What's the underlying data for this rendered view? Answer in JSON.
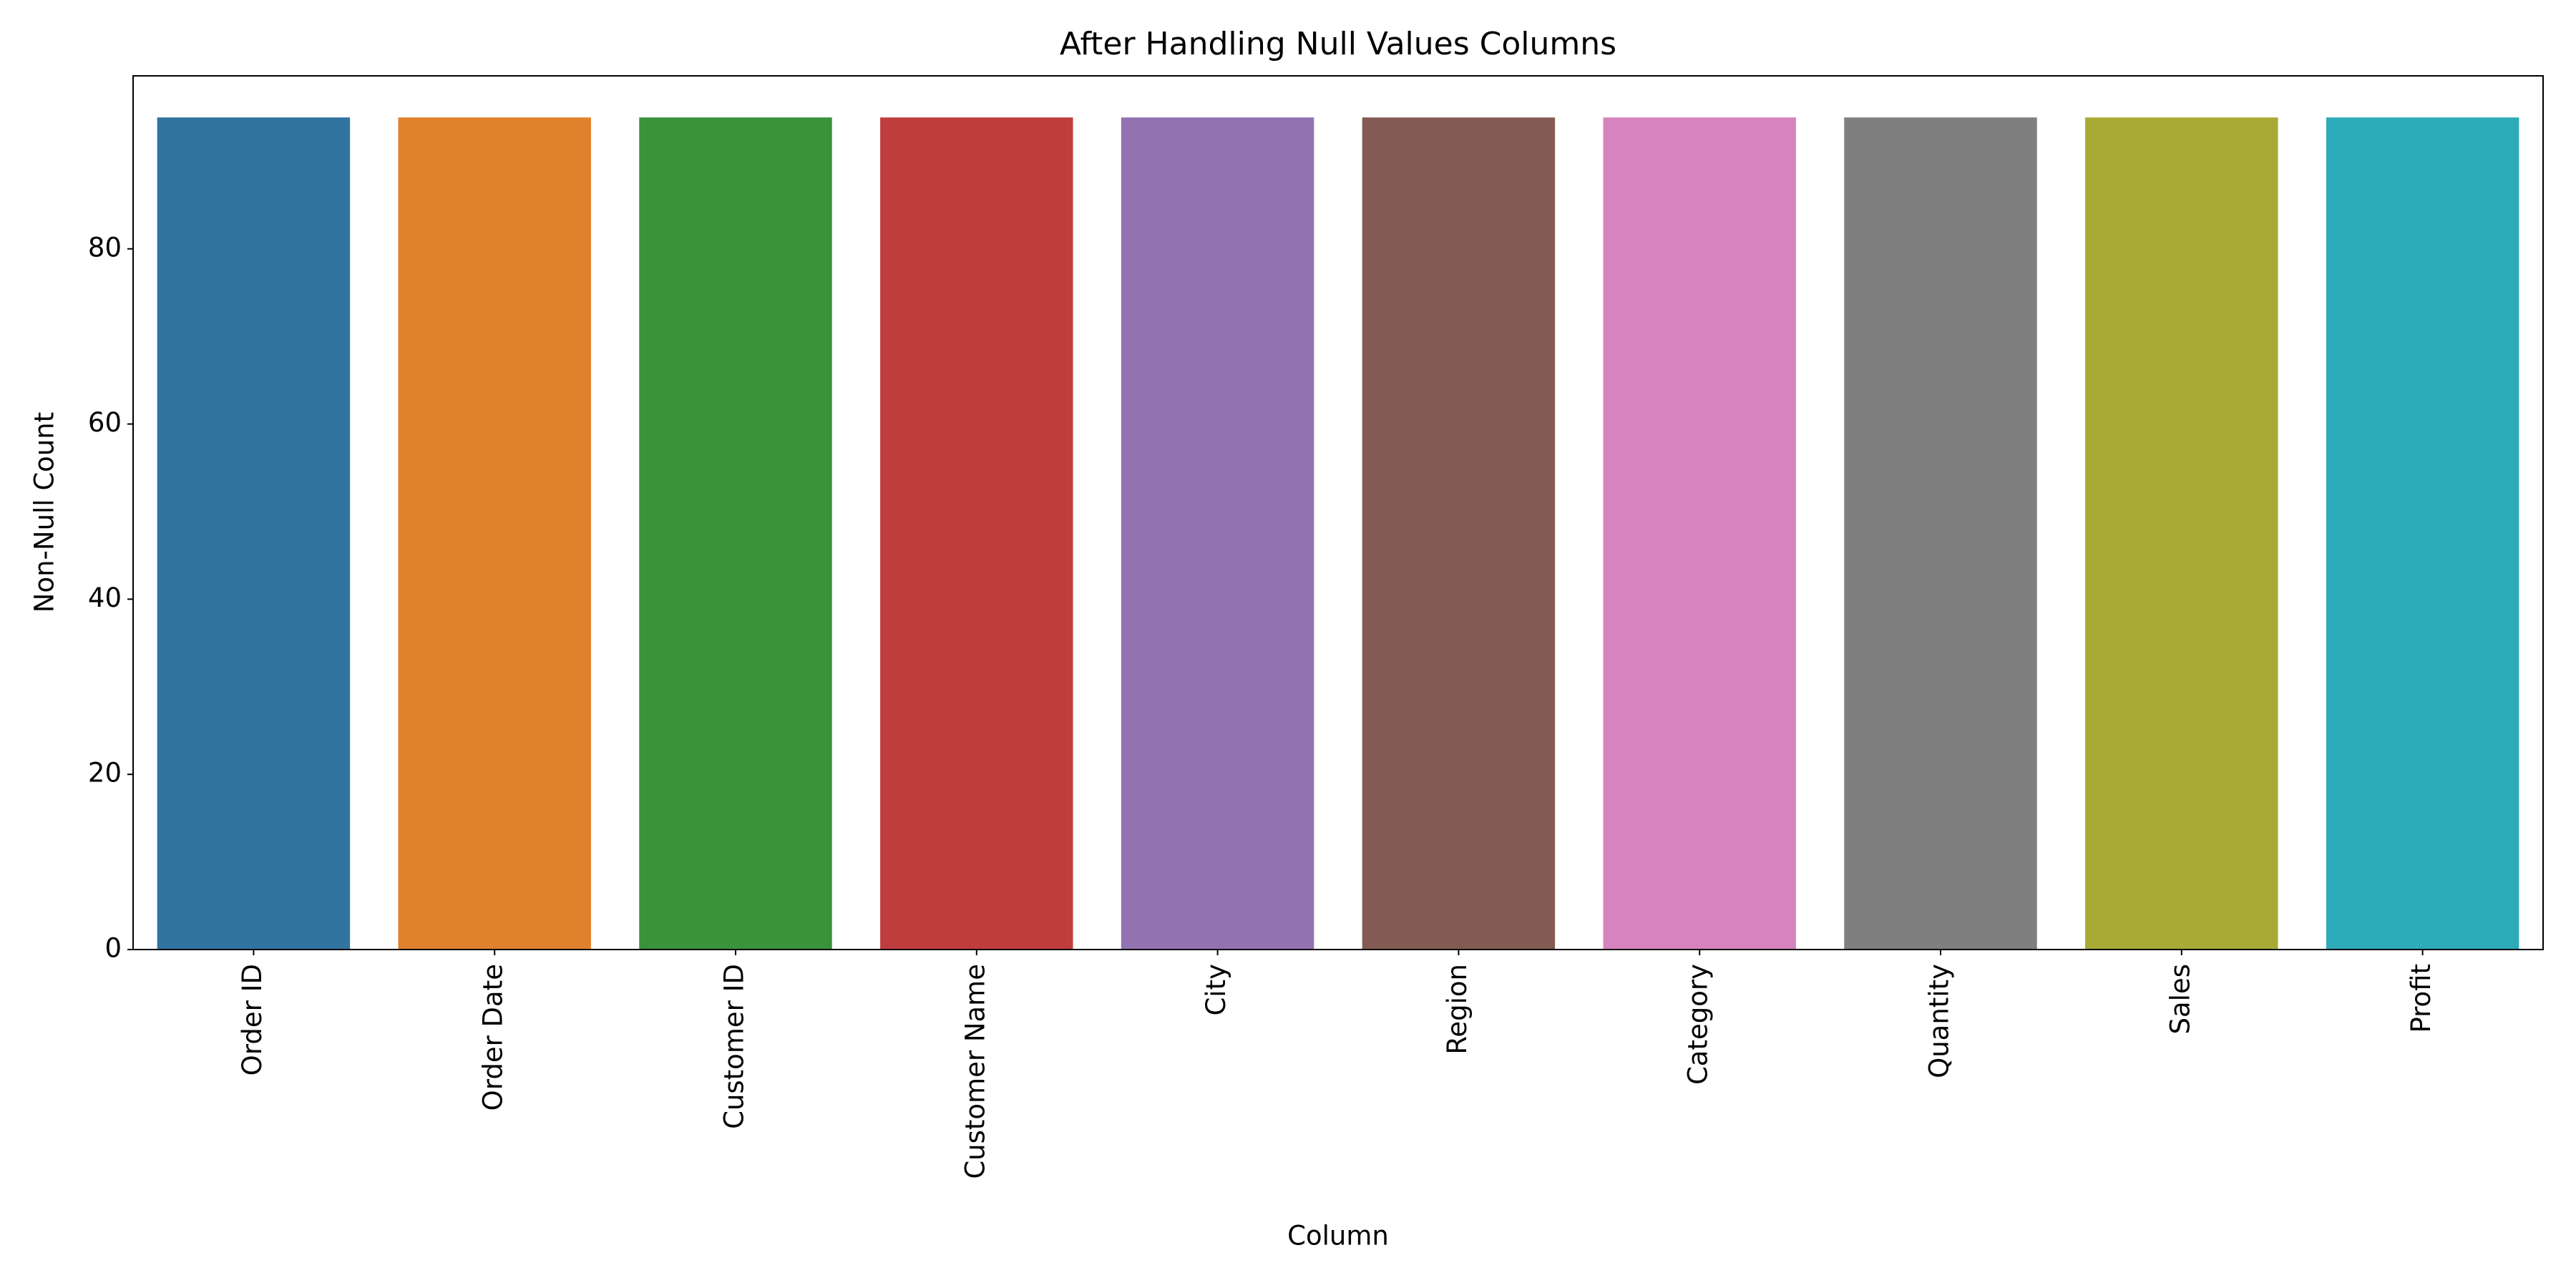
{
  "chart_data": {
    "type": "bar",
    "title": "After Handling Null Values Columns",
    "x_label": "Column",
    "y_label": "Non-Null Count",
    "categories": [
      "Order ID",
      "Order Date",
      "Customer ID",
      "Customer Name",
      "City",
      "Region",
      "Category",
      "Quantity",
      "Sales",
      "Profit"
    ],
    "values": [
      95,
      95,
      95,
      95,
      95,
      95,
      95,
      95,
      95,
      95
    ],
    "colors": [
      "#3274a1",
      "#e1812c",
      "#3a923a",
      "#c03d3e",
      "#9372b2",
      "#845b53",
      "#d684bd",
      "#7f7f7f",
      "#a9aa35",
      "#2eabb8"
    ],
    "ylim": [
      0,
      99.75
    ],
    "yticks": [
      0,
      20,
      40,
      60,
      80
    ],
    "grid": false
  }
}
